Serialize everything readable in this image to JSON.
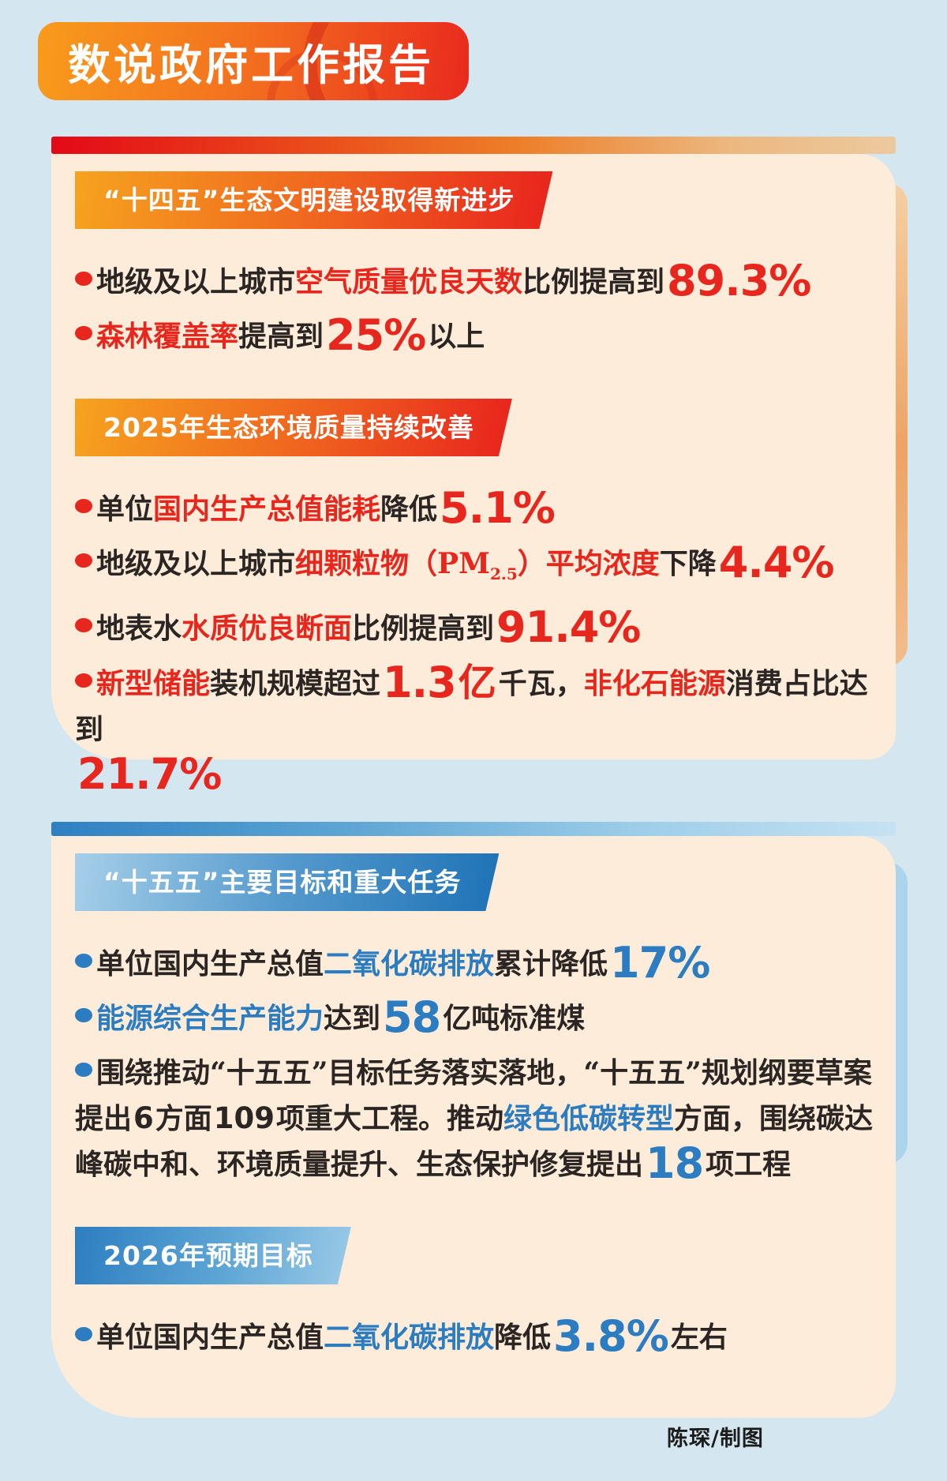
{
  "header": {
    "title": "数说政府工作报告"
  },
  "credit": "陈琛/制图",
  "colors": {
    "page_bg": "#d4e6f0",
    "panel_bg": "#fcecd9",
    "red_accent": "#e7261d",
    "blue_accent": "#2b7cc1",
    "header_gradient": [
      "#f89b1c",
      "#e92a1e"
    ]
  },
  "panels": [
    {
      "id": "shisiwu-2025",
      "theme": "red",
      "sections": [
        {
          "banner": "“十四五”生态文明建设取得新进步",
          "bullets": [
            {
              "segments": [
                {
                  "t": "地级及以上城市",
                  "s": "plain"
                },
                {
                  "t": "空气质量优良天数",
                  "s": "accent"
                },
                {
                  "t": "比例提高到",
                  "s": "plain"
                },
                {
                  "t": "89.3%",
                  "s": "num"
                }
              ]
            },
            {
              "segments": [
                {
                  "t": "森林覆盖率",
                  "s": "accent"
                },
                {
                  "t": "提高到",
                  "s": "plain"
                },
                {
                  "t": "25%",
                  "s": "num"
                },
                {
                  "t": "以上",
                  "s": "plain"
                }
              ]
            }
          ]
        },
        {
          "banner": "2025年生态环境质量持续改善",
          "bullets": [
            {
              "segments": [
                {
                  "t": "单位",
                  "s": "plain"
                },
                {
                  "t": "国内生产总值能耗",
                  "s": "accent"
                },
                {
                  "t": "降低",
                  "s": "plain"
                },
                {
                  "t": "5.1%",
                  "s": "num"
                }
              ]
            },
            {
              "segments": [
                {
                  "t": "地级及以上城市",
                  "s": "plain"
                },
                {
                  "t": "细颗粒物（PM",
                  "s": "accent"
                },
                {
                  "t": "2.5",
                  "s": "sub"
                },
                {
                  "t": "）平均浓度",
                  "s": "accent"
                },
                {
                  "t": "下降",
                  "s": "plain"
                },
                {
                  "t": "4.4%",
                  "s": "num"
                }
              ]
            },
            {
              "segments": [
                {
                  "t": "地表水",
                  "s": "plain"
                },
                {
                  "t": "水质优良断面",
                  "s": "accent"
                },
                {
                  "t": "比例提高到",
                  "s": "plain"
                },
                {
                  "t": "91.4%",
                  "s": "num"
                }
              ]
            },
            {
              "segments": [
                {
                  "t": "新型储能",
                  "s": "accent"
                },
                {
                  "t": "装机规模超过",
                  "s": "plain"
                },
                {
                  "t": "1.3",
                  "s": "num"
                },
                {
                  "t": "亿",
                  "s": "num-cn"
                },
                {
                  "t": "千瓦，",
                  "s": "plain"
                },
                {
                  "t": "非化石能源",
                  "s": "accent"
                },
                {
                  "t": "消费占比达到",
                  "s": "plain"
                },
                {
                  "br": true
                },
                {
                  "t": "21.7%",
                  "s": "num"
                }
              ]
            }
          ]
        }
      ]
    },
    {
      "id": "shiwuwu-2026",
      "theme": "blue",
      "sections": [
        {
          "banner": "“十五五”主要目标和重大任务",
          "bullets": [
            {
              "segments": [
                {
                  "t": "单位国内生产总值",
                  "s": "plain"
                },
                {
                  "t": "二氧化碳排放",
                  "s": "accent"
                },
                {
                  "t": "累计降低",
                  "s": "plain"
                },
                {
                  "t": "17%",
                  "s": "num"
                }
              ]
            },
            {
              "segments": [
                {
                  "t": "能源综合生产能力",
                  "s": "accent"
                },
                {
                  "t": "达到",
                  "s": "plain"
                },
                {
                  "t": "58",
                  "s": "num"
                },
                {
                  "t": "亿吨标准煤",
                  "s": "plain"
                }
              ]
            },
            {
              "segments": [
                {
                  "t": "围绕推动“十五五”目标任务落实落地，“十五五”规划纲要草案提出",
                  "s": "plain"
                },
                {
                  "t": "6",
                  "s": "figure"
                },
                {
                  "t": "方面",
                  "s": "plain"
                },
                {
                  "t": "109",
                  "s": "figure"
                },
                {
                  "t": "项重大工程。推动",
                  "s": "plain"
                },
                {
                  "t": "绿色低碳转型",
                  "s": "accent"
                },
                {
                  "t": "方面，围绕碳达峰碳中和、环境质量提升、生态保护修复提出",
                  "s": "plain"
                },
                {
                  "t": "18",
                  "s": "num"
                },
                {
                  "t": "项工程",
                  "s": "plain"
                }
              ]
            }
          ]
        },
        {
          "banner": "2026年预期目标",
          "bullets": [
            {
              "segments": [
                {
                  "t": "单位国内生产总值",
                  "s": "plain"
                },
                {
                  "t": "二氧化碳排放",
                  "s": "accent"
                },
                {
                  "t": "降低",
                  "s": "plain"
                },
                {
                  "t": "3.8%",
                  "s": "num"
                },
                {
                  "t": "左右",
                  "s": "plain"
                }
              ]
            }
          ]
        }
      ]
    }
  ]
}
